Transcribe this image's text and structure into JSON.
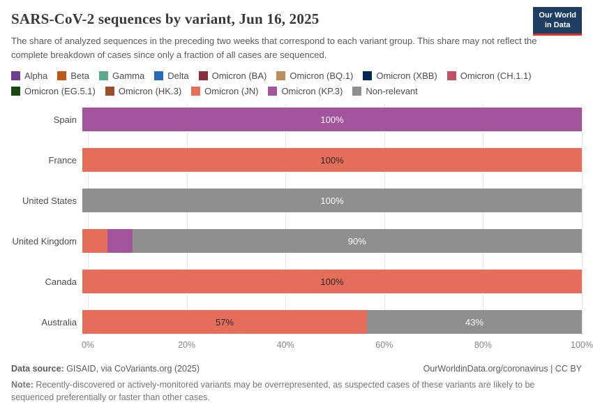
{
  "header": {
    "title": "SARS-CoV-2 sequences by variant, Jun 16, 2025",
    "subtitle": "The share of analyzed sequences in the preceding two weeks that correspond to each variant group. This share may not reflect the complete breakdown of cases since only a fraction of all cases are sequenced.",
    "logo": {
      "line1": "Our World",
      "line2": "in Data",
      "bg_color": "#1d3d63",
      "accent_color": "#e0312a"
    }
  },
  "legend": [
    {
      "label": "Alpha",
      "color": "#6d3e91"
    },
    {
      "label": "Beta",
      "color": "#c05917"
    },
    {
      "label": "Gamma",
      "color": "#58ac8c"
    },
    {
      "label": "Delta",
      "color": "#286bbb"
    },
    {
      "label": "Omicron (BA)",
      "color": "#883039"
    },
    {
      "label": "Omicron (BQ.1)",
      "color": "#bc8e5a"
    },
    {
      "label": "Omicron (XBB)",
      "color": "#00295b"
    },
    {
      "label": "Omicron (CH.1.1)",
      "color": "#c15065"
    },
    {
      "label": "Omicron (EG.5.1)",
      "color": "#18470f"
    },
    {
      "label": "Omicron (HK.3)",
      "color": "#9a5129"
    },
    {
      "label": "Omicron (JN)",
      "color": "#e56e5a"
    },
    {
      "label": "Omicron (KP.3)",
      "color": "#a2559c"
    },
    {
      "label": "Non-relevant",
      "color": "#8f8f8f"
    }
  ],
  "chart_data": {
    "type": "bar",
    "orientation": "horizontal",
    "stacked": true,
    "title": "SARS-CoV-2 sequences by variant, Jun 16, 2025",
    "unit": "%",
    "xlim": [
      0,
      100
    ],
    "x_ticks": [
      "0%",
      "20%",
      "40%",
      "60%",
      "80%",
      "100%"
    ],
    "grid": "vertical-dotted",
    "legend_position": "top",
    "categories": [
      "Spain",
      "France",
      "United States",
      "United Kingdom",
      "Canada",
      "Australia"
    ],
    "rows": [
      {
        "country": "Spain",
        "segments": [
          {
            "variant": "Omicron (KP.3)",
            "value": 100,
            "label": "100%",
            "label_style": "light"
          }
        ]
      },
      {
        "country": "France",
        "segments": [
          {
            "variant": "Omicron (JN)",
            "value": 100,
            "label": "100%",
            "label_style": "dark"
          }
        ]
      },
      {
        "country": "United States",
        "segments": [
          {
            "variant": "Non-relevant",
            "value": 100,
            "label": "100%",
            "label_style": "light"
          }
        ]
      },
      {
        "country": "United Kingdom",
        "segments": [
          {
            "variant": "Omicron (JN)",
            "value": 5,
            "label": "",
            "label_style": "dark"
          },
          {
            "variant": "Omicron (KP.3)",
            "value": 5,
            "label": "",
            "label_style": "light"
          },
          {
            "variant": "Non-relevant",
            "value": 90,
            "label": "90%",
            "label_style": "light"
          }
        ]
      },
      {
        "country": "Canada",
        "segments": [
          {
            "variant": "Omicron (JN)",
            "value": 100,
            "label": "100%",
            "label_style": "dark"
          }
        ]
      },
      {
        "country": "Australia",
        "segments": [
          {
            "variant": "Omicron (JN)",
            "value": 57,
            "label": "57%",
            "label_style": "dark"
          },
          {
            "variant": "Non-relevant",
            "value": 43,
            "label": "43%",
            "label_style": "light"
          }
        ]
      }
    ]
  },
  "footer": {
    "source_label": "Data source:",
    "source_text": " GISAID, via CoVariants.org (2025)",
    "rights": "OurWorldinData.org/coronavirus | CC BY",
    "note_label": "Note:",
    "note_text": " Recently-discovered or actively-monitored variants may be overrepresented, as suspected cases of these variants are likely to be sequenced preferentially or faster than other cases."
  }
}
